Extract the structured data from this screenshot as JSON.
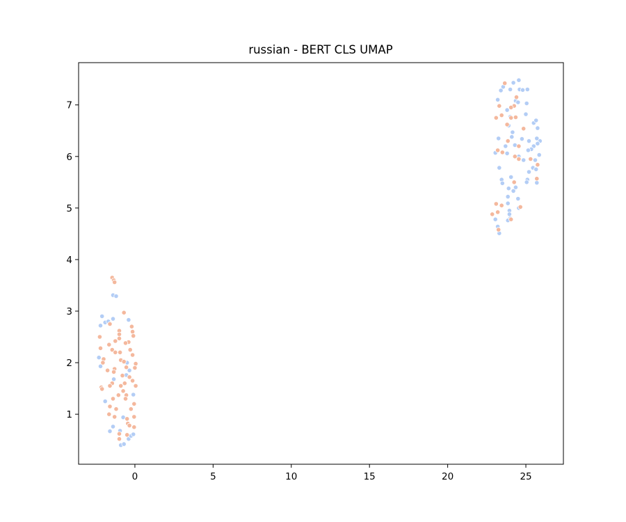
{
  "chart_data": {
    "type": "scatter",
    "title": "russian - BERT CLS UMAP",
    "xlabel": "",
    "ylabel": "",
    "xlim": [
      -3.6,
      27.4
    ],
    "ylim": [
      0.03,
      7.82
    ],
    "xticks": [
      0,
      5,
      10,
      15,
      20,
      25
    ],
    "yticks": [
      1,
      2,
      3,
      4,
      5,
      6,
      7
    ],
    "grid": false,
    "legend": "none",
    "series": [
      {
        "color": "#b3cdf5",
        "points": [
          [
            -2.1,
            2.9
          ],
          [
            -2.2,
            2.72
          ],
          [
            -1.9,
            2.78
          ],
          [
            -1.7,
            2.8
          ],
          [
            -1.4,
            2.85
          ],
          [
            -2.3,
            2.1
          ],
          [
            -2.2,
            1.93
          ],
          [
            -1.4,
            3.31
          ],
          [
            -1.2,
            3.29
          ],
          [
            -0.4,
            2.83
          ],
          [
            -1.9,
            1.25
          ],
          [
            -1.35,
            1.68
          ],
          [
            -0.55,
            1.76
          ],
          [
            -0.35,
            1.85
          ],
          [
            -0.5,
            2.0
          ],
          [
            -0.1,
            1.38
          ],
          [
            -1.6,
            0.67
          ],
          [
            -1.4,
            0.76
          ],
          [
            -0.75,
            0.94
          ],
          [
            -0.95,
            0.68
          ],
          [
            -0.9,
            0.4
          ],
          [
            -0.7,
            0.42
          ],
          [
            -0.4,
            0.52
          ],
          [
            -0.25,
            0.58
          ],
          [
            -0.1,
            0.61
          ],
          [
            24.55,
            7.48
          ],
          [
            24.2,
            7.43
          ],
          [
            23.55,
            7.35
          ],
          [
            23.4,
            7.28
          ],
          [
            24.0,
            7.3
          ],
          [
            24.6,
            7.3
          ],
          [
            24.8,
            7.29
          ],
          [
            25.1,
            7.3
          ],
          [
            23.2,
            7.1
          ],
          [
            24.35,
            7.08
          ],
          [
            24.5,
            7.05
          ],
          [
            25.05,
            7.03
          ],
          [
            23.8,
            6.9
          ],
          [
            24.0,
            6.77
          ],
          [
            25.0,
            6.82
          ],
          [
            25.5,
            6.65
          ],
          [
            25.65,
            6.7
          ],
          [
            23.9,
            6.6
          ],
          [
            25.75,
            6.55
          ],
          [
            24.15,
            6.47
          ],
          [
            23.25,
            6.35
          ],
          [
            24.1,
            6.38
          ],
          [
            24.75,
            6.34
          ],
          [
            25.9,
            6.3
          ],
          [
            25.7,
            6.35
          ],
          [
            25.75,
            6.25
          ],
          [
            25.2,
            6.3
          ],
          [
            25.5,
            6.2
          ],
          [
            25.35,
            6.14
          ],
          [
            25.15,
            6.12
          ],
          [
            23.7,
            6.2
          ],
          [
            24.3,
            6.22
          ],
          [
            23.05,
            6.07
          ],
          [
            23.8,
            6.06
          ],
          [
            24.55,
            6.0
          ],
          [
            24.85,
            5.93
          ],
          [
            25.6,
            5.93
          ],
          [
            25.85,
            6.03
          ],
          [
            23.3,
            5.78
          ],
          [
            25.45,
            5.78
          ],
          [
            25.65,
            5.75
          ],
          [
            25.2,
            5.7
          ],
          [
            24.05,
            5.6
          ],
          [
            23.45,
            5.55
          ],
          [
            23.5,
            5.48
          ],
          [
            25.1,
            5.55
          ],
          [
            25.05,
            5.5
          ],
          [
            25.7,
            5.49
          ],
          [
            23.9,
            5.38
          ],
          [
            24.2,
            5.33
          ],
          [
            24.35,
            5.4
          ],
          [
            23.85,
            5.22
          ],
          [
            24.5,
            5.18
          ],
          [
            23.85,
            5.09
          ],
          [
            24.55,
            5.0
          ],
          [
            23.95,
            4.95
          ],
          [
            23.05,
            4.78
          ],
          [
            24.0,
            4.8
          ],
          [
            23.85,
            4.76
          ],
          [
            23.2,
            4.64
          ],
          [
            23.95,
            4.88
          ],
          [
            23.3,
            4.51
          ]
        ]
      },
      {
        "color": "#f4b89d",
        "points": [
          [
            -1.45,
            3.65
          ],
          [
            -1.35,
            3.6
          ],
          [
            -1.3,
            3.56
          ],
          [
            -0.7,
            2.97
          ],
          [
            -1.6,
            2.75
          ],
          [
            -0.2,
            2.7
          ],
          [
            -0.15,
            2.6
          ],
          [
            -1.0,
            2.62
          ],
          [
            -0.1,
            2.52
          ],
          [
            -1.0,
            2.55
          ],
          [
            -1.0,
            2.47
          ],
          [
            -2.25,
            2.5
          ],
          [
            -1.25,
            2.42
          ],
          [
            -0.4,
            2.4
          ],
          [
            -0.6,
            2.38
          ],
          [
            -1.65,
            2.35
          ],
          [
            -2.2,
            2.28
          ],
          [
            -1.45,
            2.25
          ],
          [
            -1.25,
            2.2
          ],
          [
            -0.95,
            2.2
          ],
          [
            -0.3,
            2.25
          ],
          [
            -0.15,
            2.15
          ],
          [
            -2.0,
            2.07
          ],
          [
            -0.9,
            2.05
          ],
          [
            -0.7,
            2.02
          ],
          [
            0.05,
            1.98
          ],
          [
            -2.05,
            2.0
          ],
          [
            -0.55,
            1.91
          ],
          [
            -1.3,
            1.88
          ],
          [
            0.0,
            1.9
          ],
          [
            -1.75,
            1.85
          ],
          [
            -1.35,
            1.82
          ],
          [
            -0.8,
            1.75
          ],
          [
            -0.35,
            1.72
          ],
          [
            -1.45,
            1.6
          ],
          [
            -1.6,
            1.55
          ],
          [
            -0.9,
            1.55
          ],
          [
            -0.65,
            1.6
          ],
          [
            -0.15,
            1.65
          ],
          [
            0.05,
            1.55
          ],
          [
            -2.15,
            1.52
          ],
          [
            -2.1,
            1.49
          ],
          [
            -0.75,
            1.45
          ],
          [
            -1.05,
            1.37
          ],
          [
            -0.55,
            1.37
          ],
          [
            -1.4,
            1.3
          ],
          [
            -0.6,
            1.3
          ],
          [
            -0.05,
            1.2
          ],
          [
            -1.6,
            1.15
          ],
          [
            -1.2,
            1.1
          ],
          [
            -0.25,
            1.1
          ],
          [
            -1.65,
            1.0
          ],
          [
            -1.3,
            0.95
          ],
          [
            -0.5,
            0.91
          ],
          [
            -0.05,
            0.95
          ],
          [
            -0.45,
            0.82
          ],
          [
            -0.35,
            0.78
          ],
          [
            -0.05,
            0.75
          ],
          [
            -1.0,
            0.62
          ],
          [
            -1.0,
            0.52
          ],
          [
            -0.5,
            0.6
          ],
          [
            23.65,
            7.42
          ],
          [
            24.4,
            7.15
          ],
          [
            24.25,
            6.98
          ],
          [
            23.1,
            6.75
          ],
          [
            23.3,
            6.98
          ],
          [
            23.45,
            6.8
          ],
          [
            24.05,
            6.95
          ],
          [
            24.35,
            6.76
          ],
          [
            24.05,
            6.75
          ],
          [
            24.85,
            6.54
          ],
          [
            23.8,
            6.62
          ],
          [
            23.85,
            6.3
          ],
          [
            24.55,
            6.2
          ],
          [
            24.3,
            6.0
          ],
          [
            24.55,
            5.95
          ],
          [
            23.2,
            6.12
          ],
          [
            23.5,
            6.08
          ],
          [
            25.3,
            5.95
          ],
          [
            25.75,
            5.84
          ],
          [
            25.7,
            5.57
          ],
          [
            24.25,
            5.5
          ],
          [
            23.1,
            5.08
          ],
          [
            23.45,
            5.05
          ],
          [
            24.65,
            5.02
          ],
          [
            22.85,
            4.88
          ],
          [
            23.2,
            4.92
          ],
          [
            24.05,
            4.78
          ],
          [
            23.25,
            4.58
          ]
        ]
      }
    ]
  }
}
